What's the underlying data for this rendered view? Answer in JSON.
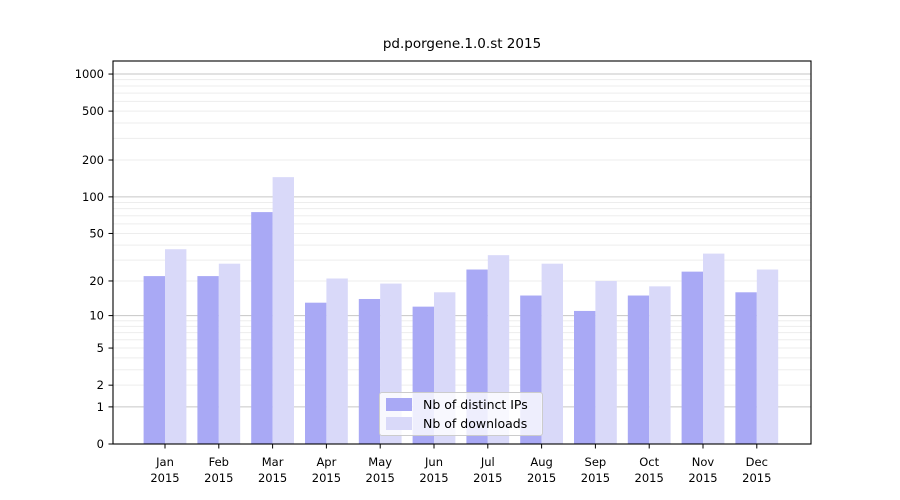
{
  "chart_data": {
    "type": "bar",
    "title": "pd.porgene.1.0.st 2015",
    "xlabel": "",
    "ylabel": "",
    "y_scale": "log10(1+x)",
    "y_ticks": [
      0,
      1,
      2,
      5,
      10,
      20,
      50,
      100,
      200,
      500,
      1000
    ],
    "ylim": [
      0,
      1270
    ],
    "grid": "horizontal major and minor gridlines on",
    "legend_position": "inside bottom-center",
    "categories": [
      "Jan",
      "Feb",
      "Mar",
      "Apr",
      "May",
      "Jun",
      "Jul",
      "Aug",
      "Sep",
      "Oct",
      "Nov",
      "Dec"
    ],
    "category_year": "2015",
    "series": [
      {
        "name": "Nb of distinct IPs",
        "color": "#a9a9f5",
        "values": [
          22,
          22,
          75,
          13,
          14,
          12,
          25,
          15,
          11,
          15,
          24,
          16
        ]
      },
      {
        "name": "Nb of downloads",
        "color": "#d9d9f9",
        "values": [
          37,
          28,
          145,
          21,
          19,
          16,
          33,
          28,
          20,
          18,
          34,
          25
        ]
      }
    ]
  }
}
